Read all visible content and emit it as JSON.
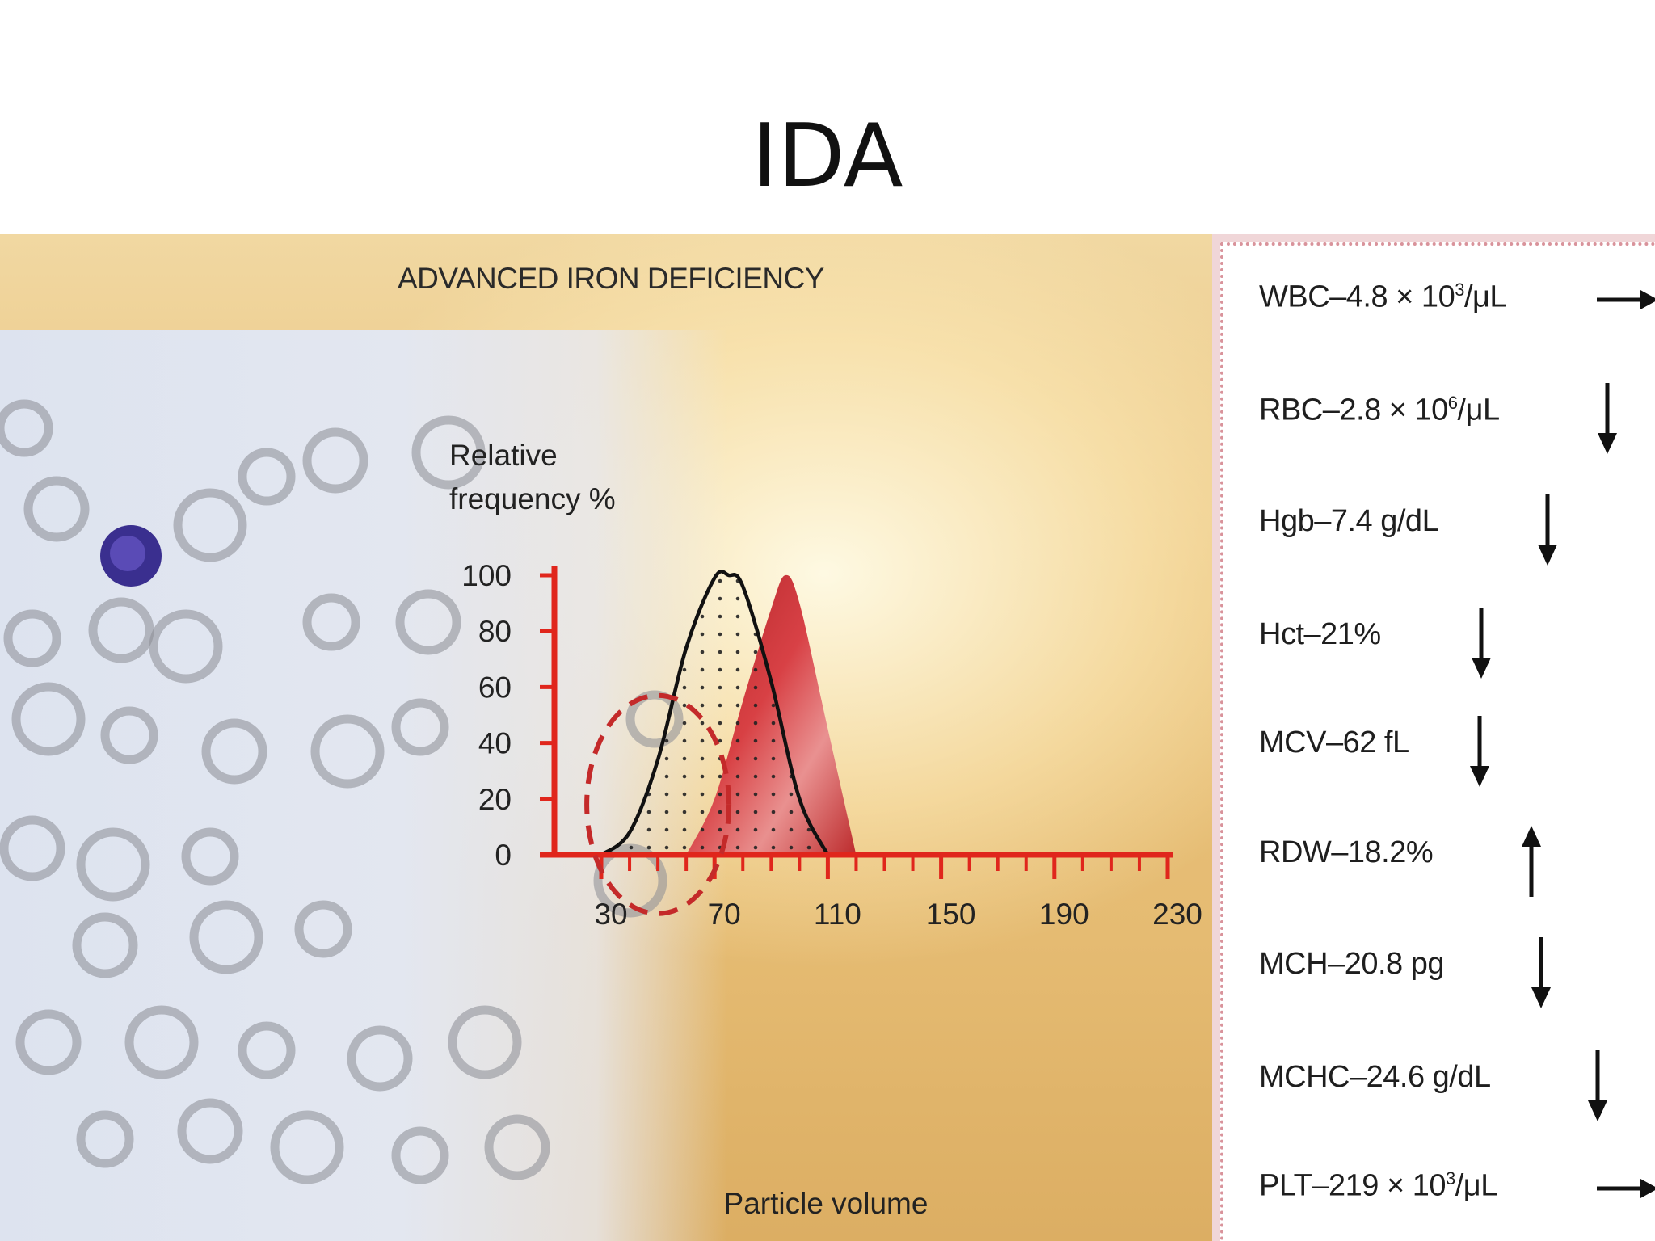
{
  "slide": {
    "title": "IDA"
  },
  "figure": {
    "heading": "ADVANCED IRON DEFICIENCY"
  },
  "chart_data": {
    "type": "line",
    "ylabel_line1": "Relative",
    "ylabel_line2": "frequency %",
    "xlabel": "Particle volume",
    "y_ticks": [
      0,
      20,
      40,
      60,
      80,
      100
    ],
    "x_ticks": [
      30,
      70,
      110,
      150,
      190,
      230
    ],
    "xlim": [
      30,
      230
    ],
    "ylim": [
      0,
      100
    ],
    "series": [
      {
        "style": "black outline, dotted fill",
        "x": [
          30,
          40,
          50,
          60,
          70,
          75,
          80,
          90,
          100,
          110
        ],
        "y": [
          0,
          8,
          34,
          74,
          99,
          100,
          96,
          62,
          20,
          0
        ]
      },
      {
        "style": "red filled (reference)",
        "x": [
          60,
          70,
          80,
          90,
          95,
          100,
          110,
          120
        ],
        "y": [
          0,
          20,
          55,
          88,
          100,
          90,
          45,
          0
        ]
      }
    ],
    "annotation": {
      "type": "dashed-circle",
      "color": "#c42a2a",
      "center": [
        50,
        18
      ]
    }
  },
  "labs": [
    {
      "name": "WBC",
      "value": "4.8 × 10",
      "sup": "3",
      "unit": "/μL",
      "trend": "right"
    },
    {
      "name": "RBC",
      "value": "2.8 × 10",
      "sup": "6",
      "unit": "/μL",
      "trend": "down"
    },
    {
      "name": "Hgb",
      "value": "7.4 g/dL",
      "sup": "",
      "unit": "",
      "trend": "down"
    },
    {
      "name": "Hct",
      "value": "21%",
      "sup": "",
      "unit": "",
      "trend": "down"
    },
    {
      "name": "MCV",
      "value": "62 fL",
      "sup": "",
      "unit": "",
      "trend": "down"
    },
    {
      "name": "RDW",
      "value": "18.2%",
      "sup": "",
      "unit": "",
      "trend": "up"
    },
    {
      "name": "MCH",
      "value": "20.8 pg",
      "sup": "",
      "unit": "",
      "trend": "down"
    },
    {
      "name": "MCHC",
      "value": "24.6 g/dL",
      "sup": "",
      "unit": "",
      "trend": "down"
    },
    {
      "name": "PLT",
      "value": "219 × 10",
      "sup": "3",
      "unit": "/μL",
      "trend": "right"
    }
  ],
  "colors": {
    "axis": "#e0261c",
    "curve": "#111111",
    "refFill": "#c0181c",
    "accent": "#c42a2a"
  }
}
